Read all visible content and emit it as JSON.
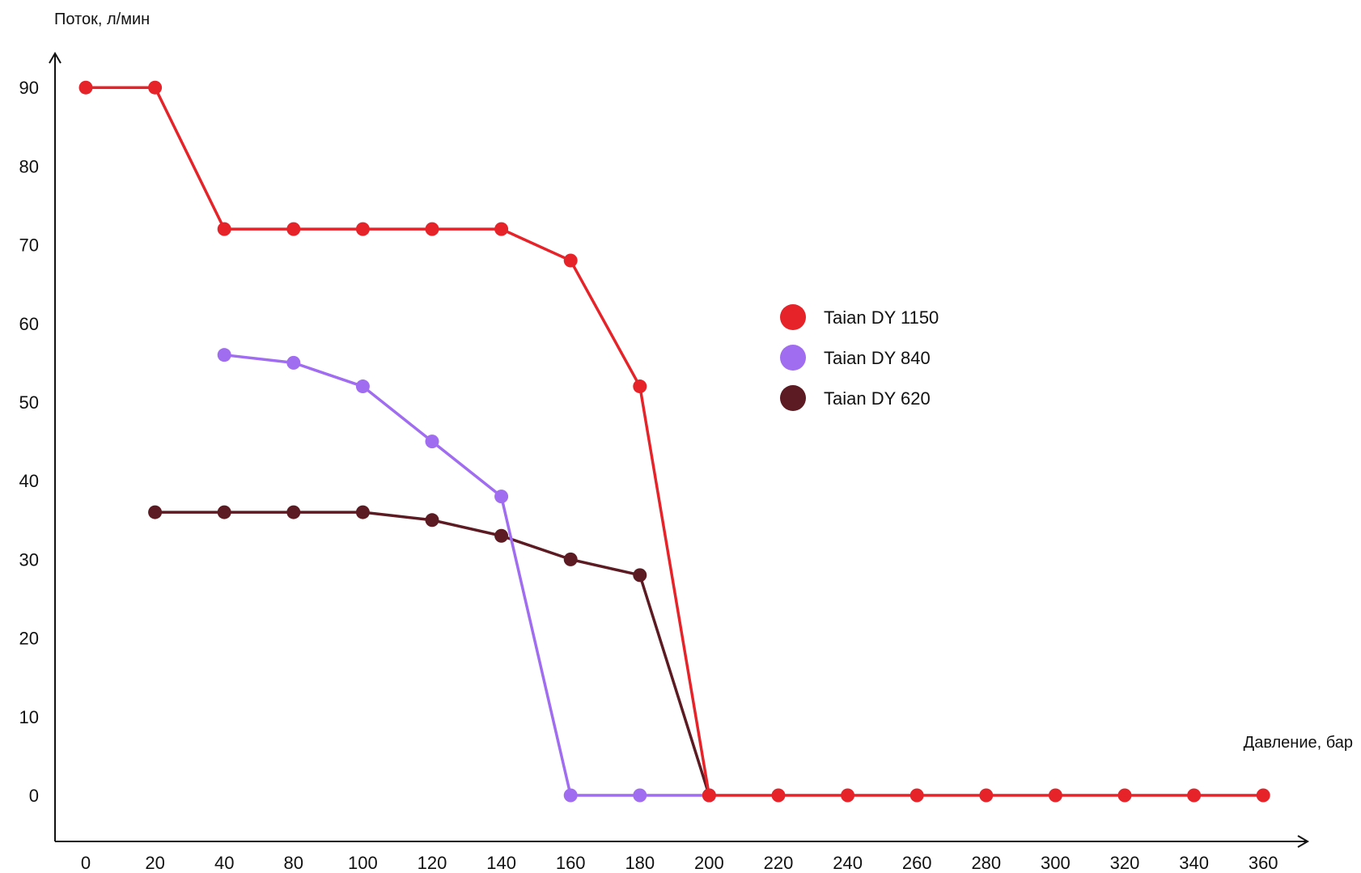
{
  "chart_data": {
    "type": "line",
    "title": "",
    "xlabel": "Давление, бар",
    "ylabel": "Поток, л/мин",
    "x_ticks": [
      "0",
      "20",
      "40",
      "80",
      "100",
      "120",
      "140",
      "160",
      "180",
      "200",
      "220",
      "240",
      "260",
      "280",
      "300",
      "320",
      "340",
      "360"
    ],
    "y_ticks": [
      0,
      10,
      20,
      30,
      40,
      50,
      60,
      70,
      80,
      90
    ],
    "ylim": [
      -5,
      95
    ],
    "grid": false,
    "legend_position": "center-right",
    "series": [
      {
        "name": "Taian DY 1150",
        "color": "#e52329",
        "points": [
          [
            "0",
            90
          ],
          [
            "20",
            90
          ],
          [
            "40",
            72
          ],
          [
            "80",
            72
          ],
          [
            "100",
            72
          ],
          [
            "120",
            72
          ],
          [
            "140",
            72
          ],
          [
            "160",
            68
          ],
          [
            "180",
            52
          ],
          [
            "200",
            0
          ],
          [
            "220",
            0
          ],
          [
            "240",
            0
          ],
          [
            "260",
            0
          ],
          [
            "280",
            0
          ],
          [
            "300",
            0
          ],
          [
            "320",
            0
          ],
          [
            "340",
            0
          ],
          [
            "360",
            0
          ]
        ]
      },
      {
        "name": "Taian DY 840",
        "color": "#a06cf0",
        "points": [
          [
            "40",
            56
          ],
          [
            "80",
            55
          ],
          [
            "100",
            52
          ],
          [
            "120",
            45
          ],
          [
            "140",
            38
          ],
          [
            "160",
            0
          ],
          [
            "180",
            0
          ],
          [
            "200",
            0
          ]
        ]
      },
      {
        "name": "Taian DY 620",
        "color": "#5c1a22",
        "points": [
          [
            "20",
            36
          ],
          [
            "40",
            36
          ],
          [
            "80",
            36
          ],
          [
            "100",
            36
          ],
          [
            "120",
            35
          ],
          [
            "140",
            33
          ],
          [
            "160",
            30
          ],
          [
            "180",
            28
          ],
          [
            "200",
            0
          ]
        ]
      }
    ]
  }
}
